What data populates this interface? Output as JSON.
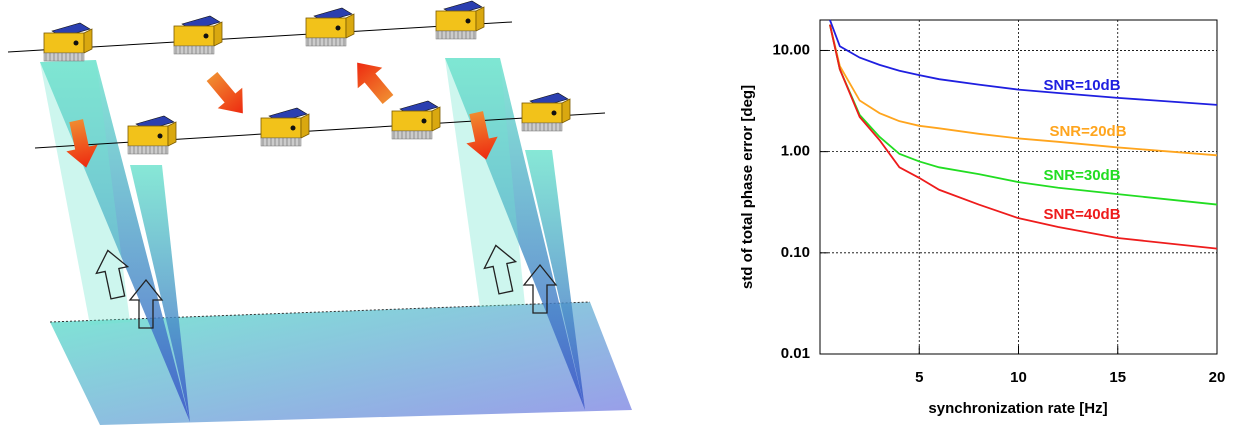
{
  "chart_data": {
    "type": "line",
    "x_label": "synchronization rate [Hz]",
    "y_label": "std of total phase error [deg]",
    "x": [
      0.5,
      1,
      2,
      3,
      4,
      5,
      6,
      8,
      10,
      12,
      15,
      20
    ],
    "series": [
      {
        "name": "SNR=10dB",
        "color": "#1f1fe0",
        "values": [
          20,
          11,
          8.5,
          7.2,
          6.3,
          5.7,
          5.2,
          4.6,
          4.1,
          3.8,
          3.4,
          2.9
        ]
      },
      {
        "name": "SNR=20dB",
        "color": "#ffa51e",
        "values": [
          18,
          7,
          3.2,
          2.4,
          2.0,
          1.8,
          1.7,
          1.5,
          1.35,
          1.25,
          1.1,
          0.92
        ]
      },
      {
        "name": "SNR=30dB",
        "color": "#22dd22",
        "values": [
          18,
          6.5,
          2.3,
          1.4,
          0.95,
          0.8,
          0.7,
          0.6,
          0.5,
          0.44,
          0.38,
          0.3
        ]
      },
      {
        "name": "SNR=40dB",
        "color": "#ee1c1c",
        "values": [
          18,
          6.5,
          2.2,
          1.3,
          0.7,
          0.55,
          0.42,
          0.3,
          0.22,
          0.18,
          0.14,
          0.11
        ]
      }
    ],
    "xlim": [
      0,
      20
    ],
    "xticks": [
      5,
      10,
      15,
      20
    ],
    "ylim": [
      0.01,
      20
    ],
    "yticks": [
      {
        "value": 0.01,
        "label": "0.01"
      },
      {
        "value": 0.1,
        "label": "0.10"
      },
      {
        "value": 1,
        "label": "1.00"
      },
      {
        "value": 10,
        "label": "10.00"
      }
    ],
    "ylog": true,
    "grid": true
  }
}
